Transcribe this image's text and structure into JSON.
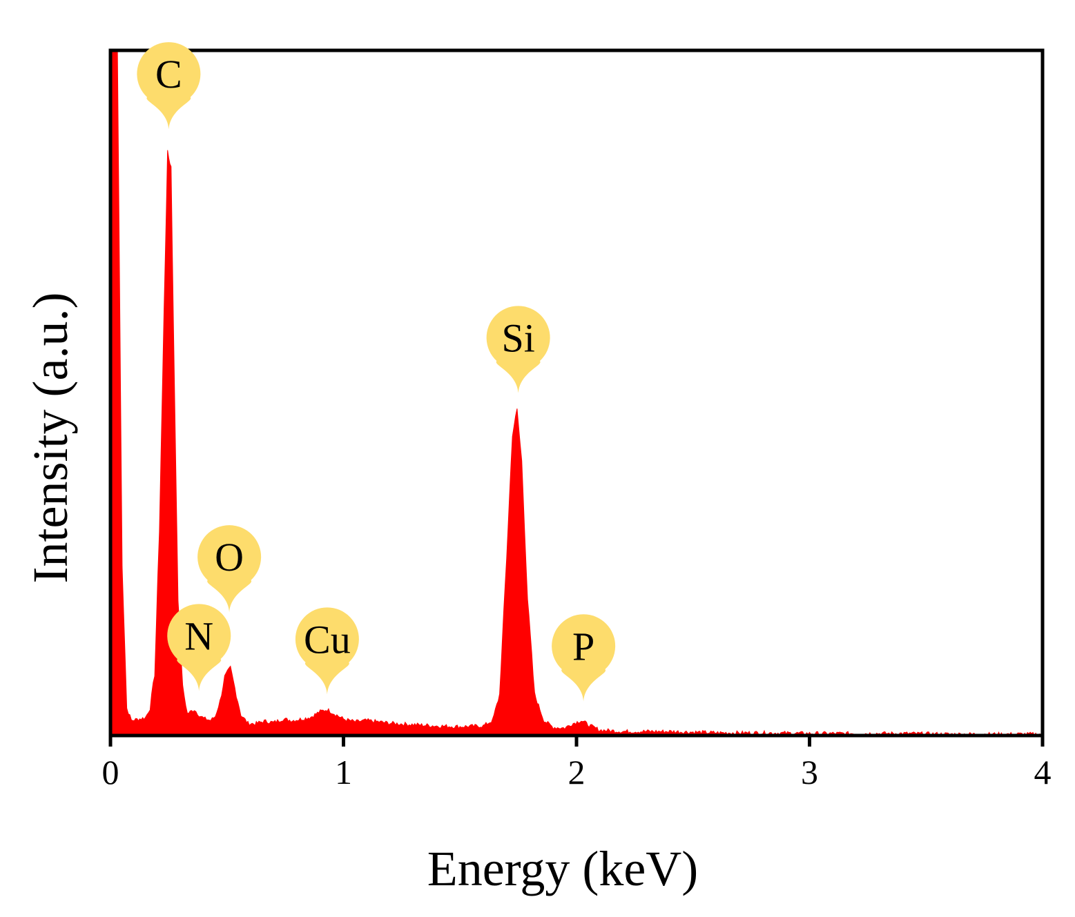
{
  "chart_data": {
    "type": "area",
    "xlabel": "Energy (keV)",
    "ylabel": "Intensity (a.u.)",
    "xlim": [
      0,
      4
    ],
    "ylim": [
      0,
      1.0
    ],
    "x_ticks": [
      {
        "value": 0,
        "label": "0"
      },
      {
        "value": 1,
        "label": "1"
      },
      {
        "value": 2,
        "label": "2"
      },
      {
        "value": 3,
        "label": "3"
      },
      {
        "value": 4,
        "label": "4"
      }
    ],
    "y_ticks_shown": false,
    "grid": false,
    "series": [
      {
        "color": "#ff0000",
        "points": [
          [
            0.0,
            1.0
          ],
          [
            0.03,
            1.0
          ],
          [
            0.05,
            0.25
          ],
          [
            0.07,
            0.04
          ],
          [
            0.09,
            0.022
          ],
          [
            0.12,
            0.024
          ],
          [
            0.15,
            0.026
          ],
          [
            0.17,
            0.04
          ],
          [
            0.19,
            0.09
          ],
          [
            0.21,
            0.3
          ],
          [
            0.23,
            0.62
          ],
          [
            0.245,
            0.85
          ],
          [
            0.26,
            0.83
          ],
          [
            0.275,
            0.5
          ],
          [
            0.29,
            0.2
          ],
          [
            0.31,
            0.07
          ],
          [
            0.33,
            0.032
          ],
          [
            0.36,
            0.038
          ],
          [
            0.38,
            0.03
          ],
          [
            0.4,
            0.025
          ],
          [
            0.43,
            0.022
          ],
          [
            0.45,
            0.028
          ],
          [
            0.47,
            0.05
          ],
          [
            0.49,
            0.085
          ],
          [
            0.515,
            0.098
          ],
          [
            0.54,
            0.06
          ],
          [
            0.56,
            0.03
          ],
          [
            0.59,
            0.018
          ],
          [
            0.62,
            0.017
          ],
          [
            0.66,
            0.021
          ],
          [
            0.7,
            0.019
          ],
          [
            0.74,
            0.024
          ],
          [
            0.78,
            0.022
          ],
          [
            0.82,
            0.024
          ],
          [
            0.86,
            0.027
          ],
          [
            0.9,
            0.035
          ],
          [
            0.93,
            0.038
          ],
          [
            0.96,
            0.032
          ],
          [
            1.0,
            0.024
          ],
          [
            1.05,
            0.02
          ],
          [
            1.1,
            0.022
          ],
          [
            1.2,
            0.018
          ],
          [
            1.3,
            0.016
          ],
          [
            1.4,
            0.014
          ],
          [
            1.5,
            0.013
          ],
          [
            1.6,
            0.014
          ],
          [
            1.64,
            0.022
          ],
          [
            1.67,
            0.06
          ],
          [
            1.7,
            0.26
          ],
          [
            1.725,
            0.44
          ],
          [
            1.745,
            0.475
          ],
          [
            1.765,
            0.4
          ],
          [
            1.79,
            0.2
          ],
          [
            1.82,
            0.06
          ],
          [
            1.86,
            0.022
          ],
          [
            1.9,
            0.012
          ],
          [
            1.95,
            0.011
          ],
          [
            1.98,
            0.017
          ],
          [
            2.02,
            0.022
          ],
          [
            2.06,
            0.014
          ],
          [
            2.1,
            0.008
          ],
          [
            2.2,
            0.006
          ],
          [
            2.4,
            0.006
          ],
          [
            2.6,
            0.004
          ],
          [
            2.8,
            0.004
          ],
          [
            3.0,
            0.003
          ],
          [
            3.2,
            0.003
          ],
          [
            3.4,
            0.003
          ],
          [
            3.6,
            0.002
          ],
          [
            3.8,
            0.002
          ],
          [
            4.0,
            0.002
          ]
        ]
      }
    ],
    "annotations": [
      {
        "label": "C",
        "x": 0.25,
        "y": 0.885
      },
      {
        "label": "N",
        "x": 0.38,
        "y": 0.065
      },
      {
        "label": "O",
        "x": 0.51,
        "y": 0.18
      },
      {
        "label": "Cu",
        "x": 0.93,
        "y": 0.06
      },
      {
        "label": "Si",
        "x": 1.75,
        "y": 0.5
      },
      {
        "label": "P",
        "x": 2.03,
        "y": 0.05
      }
    ],
    "marker_color": "#fddc6c"
  }
}
